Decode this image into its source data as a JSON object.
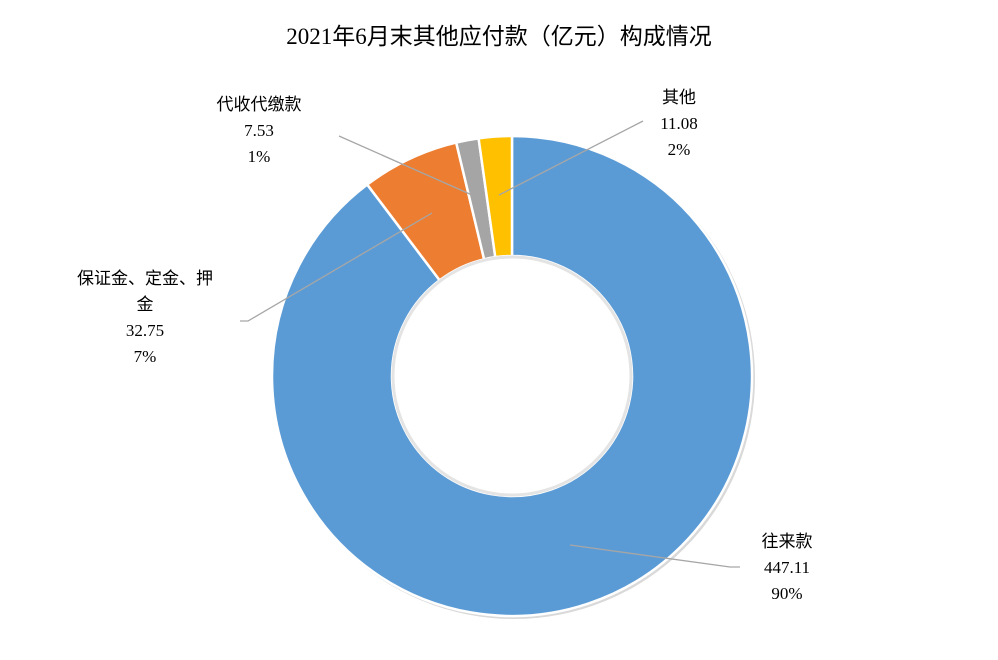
{
  "chart_data": {
    "type": "pie",
    "variant": "donut",
    "title": "2021年6月末其他应付款（亿元）构成情况",
    "slices": [
      {
        "name": "往来款",
        "value": 447.11,
        "percent": "90%",
        "color": "#5B9BD5",
        "label_lines": [
          "往来款",
          "447.11",
          "90%"
        ]
      },
      {
        "name": "保证金、定金、押金",
        "value": 32.75,
        "percent": "7%",
        "color": "#ED7D31",
        "label_lines": [
          "保证金、定金、押",
          "金",
          "32.75",
          "7%"
        ]
      },
      {
        "name": "代收代缴款",
        "value": 7.53,
        "percent": "1%",
        "color": "#A5A5A5",
        "label_lines": [
          "代收代缴款",
          "7.53",
          "1%"
        ]
      },
      {
        "name": "其他",
        "value": 11.08,
        "percent": "2%",
        "color": "#FFC000",
        "label_lines": [
          "其他",
          "11.08",
          "2%"
        ]
      }
    ],
    "legend": "none"
  }
}
